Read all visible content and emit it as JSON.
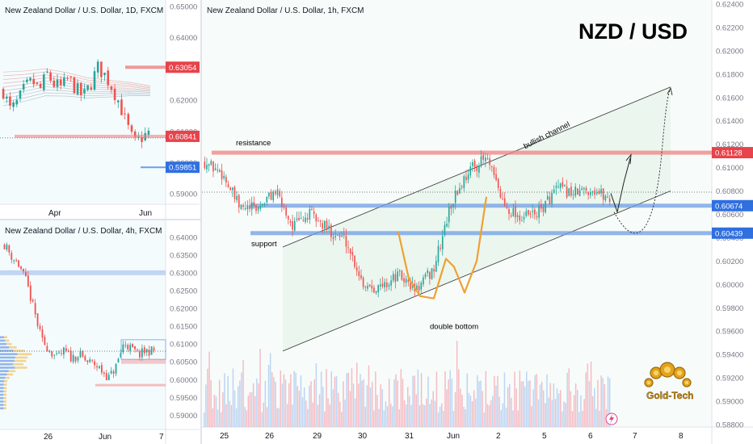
{
  "colors": {
    "up": "#26a69a",
    "down": "#ef5350",
    "bg_panel": "#f4fbfd",
    "bg_main": "#f7fcfa",
    "resistance": "#f08080",
    "support": "#6f9ee6",
    "pattern": "#f0a030",
    "text": "#131722",
    "axis": "#787b86",
    "badge_red": "#e8424a",
    "badge_blue": "#2f6fe0"
  },
  "panels": {
    "daily": {
      "title": "New Zealand Dollar / U.S. Dollar, 1D, FXCM",
      "x_labels": [
        "Apr",
        "Jun"
      ],
      "y_labels": [
        "0.65000",
        "0.64000",
        "0.63000",
        "0.62000",
        "0.61000",
        "0.60000",
        "0.59000"
      ],
      "badges": [
        "0.63054",
        "0.60841",
        "0.59851"
      ]
    },
    "h4": {
      "title": "New Zealand Dollar / U.S. Dollar, 4h, FXCM",
      "x_labels": [
        "26",
        "Jun",
        "7"
      ],
      "y_labels": [
        "0.64000",
        "0.63500",
        "0.63000",
        "0.62500",
        "0.62000",
        "0.61500",
        "0.61000",
        "0.60500",
        "0.60000",
        "0.59500",
        "0.59000"
      ]
    },
    "main": {
      "title": "New Zealand Dollar / U.S. Dollar, 1h, FXCM",
      "symbol": "NZD / USD",
      "x_labels": [
        "25",
        "26",
        "29",
        "30",
        "31",
        "Jun",
        "2",
        "5",
        "6",
        "7",
        "8"
      ],
      "y_labels": [
        "0.62400",
        "0.62200",
        "0.62000",
        "0.61800",
        "0.61600",
        "0.61400",
        "0.61200",
        "0.61000",
        "0.60800",
        "0.60600",
        "0.60400",
        "0.60200",
        "0.60000",
        "0.59800",
        "0.59600",
        "0.59400",
        "0.59200",
        "0.59000",
        "0.58800"
      ],
      "badges": [
        "0.61128",
        "0.60674",
        "0.60439"
      ],
      "annotations": {
        "resistance": "resistance",
        "support": "support",
        "channel": "bullish channel",
        "double_bottom": "double bottom"
      },
      "logo_text": "Gold-Tech"
    }
  },
  "chart_data": [
    {
      "type": "candlestick",
      "title": "New Zealand Dollar / U.S. Dollar, 1D, FXCM",
      "ylim": [
        0.588,
        0.651
      ],
      "levels": [
        0.63054,
        0.60841,
        0.59851
      ]
    },
    {
      "type": "candlestick",
      "title": "New Zealand Dollar / U.S. Dollar, 4h, FXCM",
      "ylim": [
        0.588,
        0.643
      ]
    },
    {
      "type": "candlestick",
      "title": "New Zealand Dollar / U.S. Dollar, 1h, FXCM",
      "ylim": [
        0.588,
        0.624
      ],
      "x": [
        "25",
        "26",
        "29",
        "30",
        "31",
        "Jun",
        "2",
        "5",
        "6",
        "7",
        "8"
      ],
      "close_path": [
        0.6105,
        0.6095,
        0.6065,
        0.6065,
        0.608,
        0.605,
        0.606,
        0.6047,
        0.6038,
        0.6001,
        0.5997,
        0.6008,
        0.5995,
        0.6013,
        0.6069,
        0.6098,
        0.6108,
        0.6068,
        0.6057,
        0.6062,
        0.6082,
        0.6078,
        0.6082,
        0.6073
      ],
      "levels": [
        {
          "name": "resistance",
          "value": 0.61128
        },
        {
          "name": "support",
          "value": 0.60674
        },
        {
          "name": "support",
          "value": 0.60439
        }
      ],
      "channel": {
        "lower": [
          0.5943,
          0.608
        ],
        "upper": [
          0.6032,
          0.6169
        ]
      }
    }
  ]
}
